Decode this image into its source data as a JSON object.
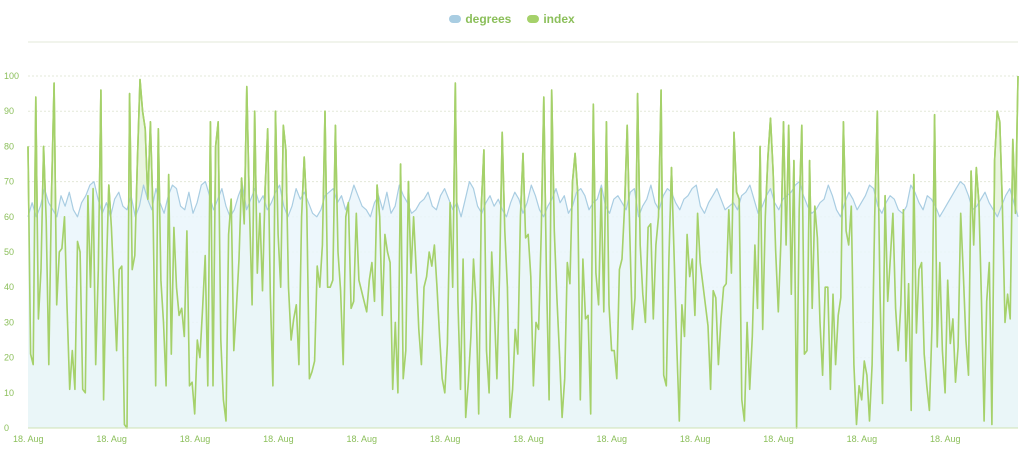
{
  "chart_data": {
    "type": "area",
    "title": "",
    "xlabel": "",
    "ylabel": "",
    "ylim": [
      0,
      100
    ],
    "y_ticks": [
      0,
      10,
      20,
      30,
      40,
      50,
      60,
      70,
      80,
      90,
      100
    ],
    "x_tick_labels": [
      "18. Aug",
      "18. Aug",
      "18. Aug",
      "18. Aug",
      "18. Aug",
      "18. Aug",
      "18. Aug",
      "18. Aug",
      "18. Aug",
      "18. Aug",
      "18. Aug",
      "18. Aug"
    ],
    "colors": {
      "degrees": "#a9cde2",
      "degrees_fill": "#eaf6fb",
      "index": "#a5d16a",
      "index_fill": "#e6f3da",
      "label": "#8bbf5a",
      "grid": "#e3e8d8"
    },
    "series": [
      {
        "name": "degrees",
        "values": [
          60,
          64,
          60,
          63,
          68,
          64,
          62,
          60,
          66,
          63,
          67,
          62,
          60,
          64,
          66,
          69,
          70,
          65,
          61,
          64,
          60,
          65,
          67,
          63,
          62,
          66,
          60,
          63,
          69,
          65,
          62,
          68,
          64,
          61,
          66,
          69,
          68,
          63,
          62,
          67,
          61,
          64,
          69,
          70,
          66,
          62,
          65,
          68,
          63,
          60,
          62,
          66,
          69,
          62,
          65,
          68,
          64,
          66,
          62,
          64,
          67,
          69,
          63,
          60,
          63,
          68,
          65,
          67,
          64,
          61,
          60,
          62,
          66,
          67,
          68,
          64,
          66,
          62,
          65,
          69,
          66,
          63,
          62,
          60,
          64,
          66,
          62,
          67,
          61,
          63,
          69,
          66,
          64,
          61,
          62,
          64,
          65,
          67,
          63,
          62,
          66,
          68,
          65,
          62,
          64,
          60,
          65,
          70,
          68,
          63,
          61,
          64,
          66,
          63,
          65,
          62,
          60,
          64,
          67,
          65,
          61,
          64,
          69,
          66,
          62,
          60,
          63,
          65,
          68,
          64,
          66,
          61,
          63,
          67,
          68,
          66,
          62,
          64,
          65,
          69,
          63,
          61,
          65,
          66,
          64,
          62,
          67,
          68,
          60,
          63,
          65,
          69,
          64,
          62,
          66,
          68,
          67,
          64,
          62,
          65,
          66,
          68,
          69,
          63,
          61,
          64,
          66,
          68,
          65,
          62,
          63,
          64,
          62,
          66,
          67,
          69,
          65,
          61,
          63,
          66,
          68,
          64,
          62,
          65,
          66,
          67,
          69,
          70,
          66,
          63,
          61,
          62,
          64,
          65,
          69,
          66,
          62,
          60,
          64,
          67,
          65,
          62,
          64,
          66,
          69,
          68,
          63,
          61,
          64,
          66,
          65,
          62,
          61,
          63,
          69,
          67,
          64,
          62,
          66,
          65,
          63,
          60,
          62,
          64,
          66,
          68,
          70,
          69,
          66,
          62,
          63,
          65,
          67,
          64,
          62,
          60,
          63,
          66,
          68,
          64,
          60
        ],
        "color": "#a9cde2"
      },
      {
        "name": "index",
        "values": [
          80,
          21,
          18,
          94,
          31,
          45,
          80,
          59,
          18,
          65,
          98,
          35,
          50,
          51,
          60,
          34,
          11,
          22,
          11,
          53,
          50,
          11,
          10,
          66,
          40,
          68,
          18,
          45,
          96,
          8,
          43,
          69,
          57,
          40,
          22,
          45,
          46,
          1,
          0,
          95,
          45,
          49,
          76,
          99,
          90,
          85,
          65,
          87,
          60,
          12,
          85,
          42,
          30,
          12,
          72,
          21,
          57,
          40,
          32,
          34,
          26,
          56,
          12,
          13,
          4,
          25,
          20,
          34,
          49,
          12,
          87,
          12,
          80,
          87,
          25,
          8,
          2,
          55,
          65,
          22,
          34,
          48,
          71,
          58,
          97,
          63,
          35,
          90,
          44,
          61,
          39,
          68,
          85,
          38,
          12,
          90,
          55,
          40,
          86,
          79,
          40,
          25,
          31,
          35,
          18,
          60,
          77,
          62,
          14,
          16,
          19,
          46,
          40,
          52,
          90,
          40,
          40,
          42,
          86,
          50,
          39,
          18,
          60,
          64,
          34,
          36,
          61,
          42,
          39,
          36,
          33,
          42,
          47,
          36,
          69,
          60,
          32,
          55,
          50,
          47,
          11,
          30,
          10,
          75,
          14,
          22,
          70,
          44,
          60,
          45,
          28,
          18,
          40,
          43,
          50,
          46,
          52,
          40,
          26,
          14,
          10,
          24,
          64,
          40,
          98,
          36,
          11,
          48,
          3,
          13,
          26,
          48,
          35,
          4,
          63,
          79,
          22,
          10,
          50,
          34,
          14,
          44,
          84,
          56,
          40,
          3,
          11,
          28,
          21,
          60,
          78,
          54,
          55,
          43,
          12,
          30,
          28,
          55,
          94,
          44,
          8,
          96,
          56,
          37,
          21,
          3,
          14,
          47,
          41,
          70,
          78,
          67,
          8,
          48,
          31,
          32,
          4,
          92,
          44,
          35,
          68,
          33,
          87,
          35,
          22,
          22,
          14,
          45,
          48,
          63,
          86,
          55,
          28,
          37,
          95,
          52,
          38,
          30,
          57,
          58,
          31,
          52,
          60,
          96,
          15,
          12,
          48,
          74,
          49,
          24,
          2,
          35,
          26,
          55,
          43,
          48,
          32,
          61,
          47,
          41,
          35,
          29,
          11,
          39,
          37,
          18,
          31,
          40,
          41,
          62,
          44,
          84,
          67,
          65,
          8,
          2,
          30,
          11,
          26,
          52,
          34,
          80,
          28,
          60,
          77,
          88,
          73,
          50,
          33,
          53,
          87,
          52,
          86,
          38,
          76,
          0,
          62,
          86,
          21,
          22,
          76,
          34,
          63,
          54,
          30,
          15,
          40,
          40,
          11,
          38,
          18,
          32,
          37,
          87,
          56,
          52,
          63,
          18,
          1,
          12,
          8,
          19,
          15,
          2,
          18,
          60,
          90,
          40,
          7,
          66,
          36,
          48,
          61,
          34,
          22,
          35,
          62,
          19,
          41,
          5,
          72,
          27,
          45,
          47,
          21,
          12,
          5,
          29,
          89,
          23,
          47,
          22,
          10,
          42,
          24,
          31,
          13,
          23,
          61,
          44,
          25,
          15,
          73,
          52,
          74,
          64,
          36,
          2,
          36,
          47,
          1,
          76,
          90,
          87,
          63,
          30,
          38,
          31,
          82,
          61,
          100
        ],
        "color": "#a5d16a"
      }
    ]
  }
}
